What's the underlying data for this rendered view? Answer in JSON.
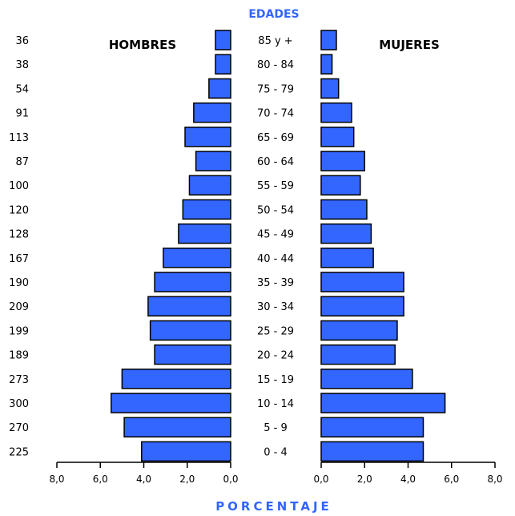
{
  "chart_data": {
    "type": "bar",
    "subtype": "population-pyramid",
    "title": "EDADES",
    "xlabel": "PORCENTAJE",
    "left_label": "HOMBRES",
    "right_label": "MUJERES",
    "categories": [
      "85 y +",
      "80 - 84",
      "75 - 79",
      "70 - 74",
      "65 - 69",
      "60 - 64",
      "55 - 59",
      "50 - 54",
      "45 - 49",
      "40 - 44",
      "35 - 39",
      "30 - 34",
      "25 - 29",
      "20 - 24",
      "15 - 19",
      "10 - 14",
      "5 - 9",
      "0 - 4"
    ],
    "left_counts": [
      "36",
      "38",
      "54",
      "91",
      "113",
      "87",
      "100",
      "120",
      "128",
      "167",
      "190",
      "209",
      "199",
      "189",
      "273",
      "300",
      "270",
      "225"
    ],
    "series": [
      {
        "name": "HOMBRES",
        "values": [
          0.7,
          0.7,
          1.0,
          1.7,
          2.1,
          1.6,
          1.9,
          2.2,
          2.4,
          3.1,
          3.5,
          3.8,
          3.7,
          3.5,
          5.0,
          5.5,
          4.9,
          4.1
        ]
      },
      {
        "name": "MUJERES",
        "values": [
          0.7,
          0.5,
          0.8,
          1.4,
          1.5,
          2.0,
          1.8,
          2.1,
          2.3,
          2.4,
          3.8,
          3.8,
          3.5,
          3.4,
          4.2,
          5.7,
          4.7,
          4.7
        ]
      }
    ],
    "xlim": [
      0,
      8
    ],
    "left_ticks": [
      "8,0",
      "6,0",
      "4,0",
      "2,0",
      "0,0"
    ],
    "right_ticks": [
      "0,0",
      "2,0",
      "4,0",
      "6,0",
      "8,0"
    ],
    "colors": {
      "bar": "#3366ff",
      "bar_stroke": "#000000",
      "title": "#3366ff",
      "text": "#000000"
    }
  }
}
